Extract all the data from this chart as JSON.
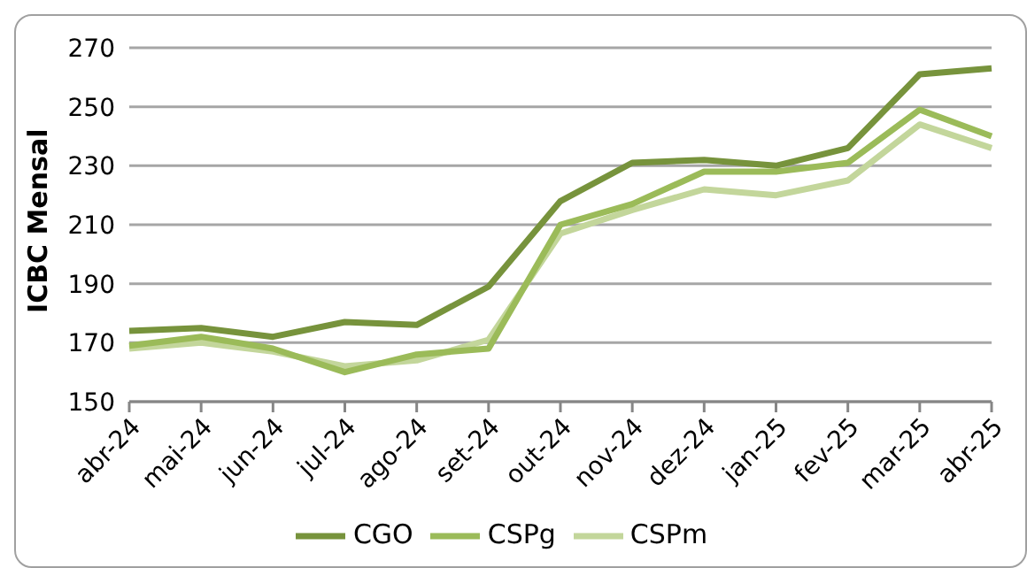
{
  "chart_data": {
    "type": "line",
    "ylabel": "ICBC Mensal",
    "categories": [
      "abr-24",
      "mai-24",
      "jun-24",
      "jul-24",
      "ago-24",
      "set-24",
      "out-24",
      "nov-24",
      "dez-24",
      "jan-25",
      "fev-25",
      "mar-25",
      "abr-25"
    ],
    "series": [
      {
        "name": "CSPm",
        "color": "#c3d69b",
        "values": [
          168,
          170,
          167,
          162,
          164,
          171,
          207,
          215,
          222,
          220,
          225,
          244,
          236
        ]
      },
      {
        "name": "CSPg",
        "color": "#9bbb59",
        "values": [
          169,
          172,
          168,
          160,
          166,
          168,
          210,
          217,
          228,
          228,
          231,
          249,
          240
        ]
      },
      {
        "name": "CGO",
        "color": "#77933c",
        "values": [
          174,
          175,
          172,
          177,
          176,
          189,
          218,
          231,
          232,
          230,
          236,
          261,
          263
        ]
      }
    ],
    "ylim": [
      150,
      270
    ],
    "yticks": [
      150,
      170,
      190,
      210,
      230,
      250,
      270
    ],
    "grid": "y",
    "legend": "bottom",
    "marker": "none",
    "line_style": "solid"
  }
}
